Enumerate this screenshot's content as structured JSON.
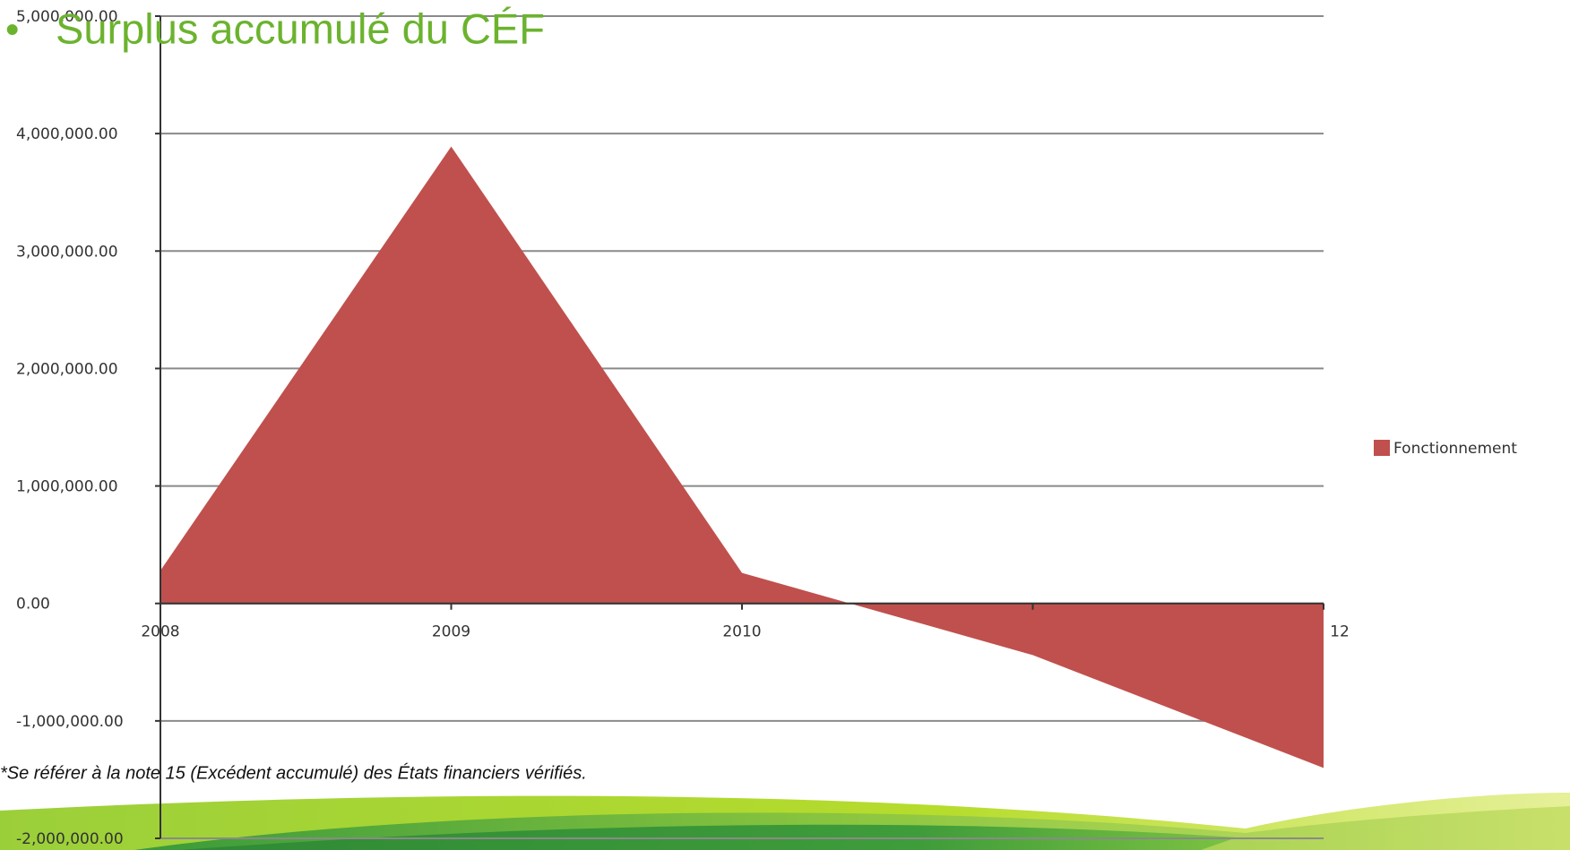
{
  "chart_data": {
    "type": "area",
    "title": "Surplus accumulé du CÉF",
    "bullet": "•",
    "footnote": "*Se référer à la note 15 (Excédent accumulé) des États financiers vérifiés.",
    "categories": [
      "2008",
      "2009",
      "2010",
      null,
      "12"
    ],
    "series": [
      {
        "name": "Fonctionnement",
        "color": "#c0504d",
        "values": [
          280000,
          3890000,
          260000,
          -440000,
          -1400000
        ]
      }
    ],
    "ylim": [
      -2000000,
      5000000
    ],
    "yticks": [
      {
        "value": -2000000,
        "label": "-2,000,000.00"
      },
      {
        "value": -1000000,
        "label": "-1,000,000.00"
      },
      {
        "value": 0,
        "label": "0.00"
      },
      {
        "value": 1000000,
        "label": "1,000,000.00"
      },
      {
        "value": 2000000,
        "label": "2,000,000.00"
      },
      {
        "value": 3000000,
        "label": "3,000,000.00"
      },
      {
        "value": 4000000,
        "label": "4,000,000.00"
      },
      {
        "value": 5000000,
        "label": "5,000,000.00"
      }
    ],
    "grid": true,
    "legend": "right"
  }
}
